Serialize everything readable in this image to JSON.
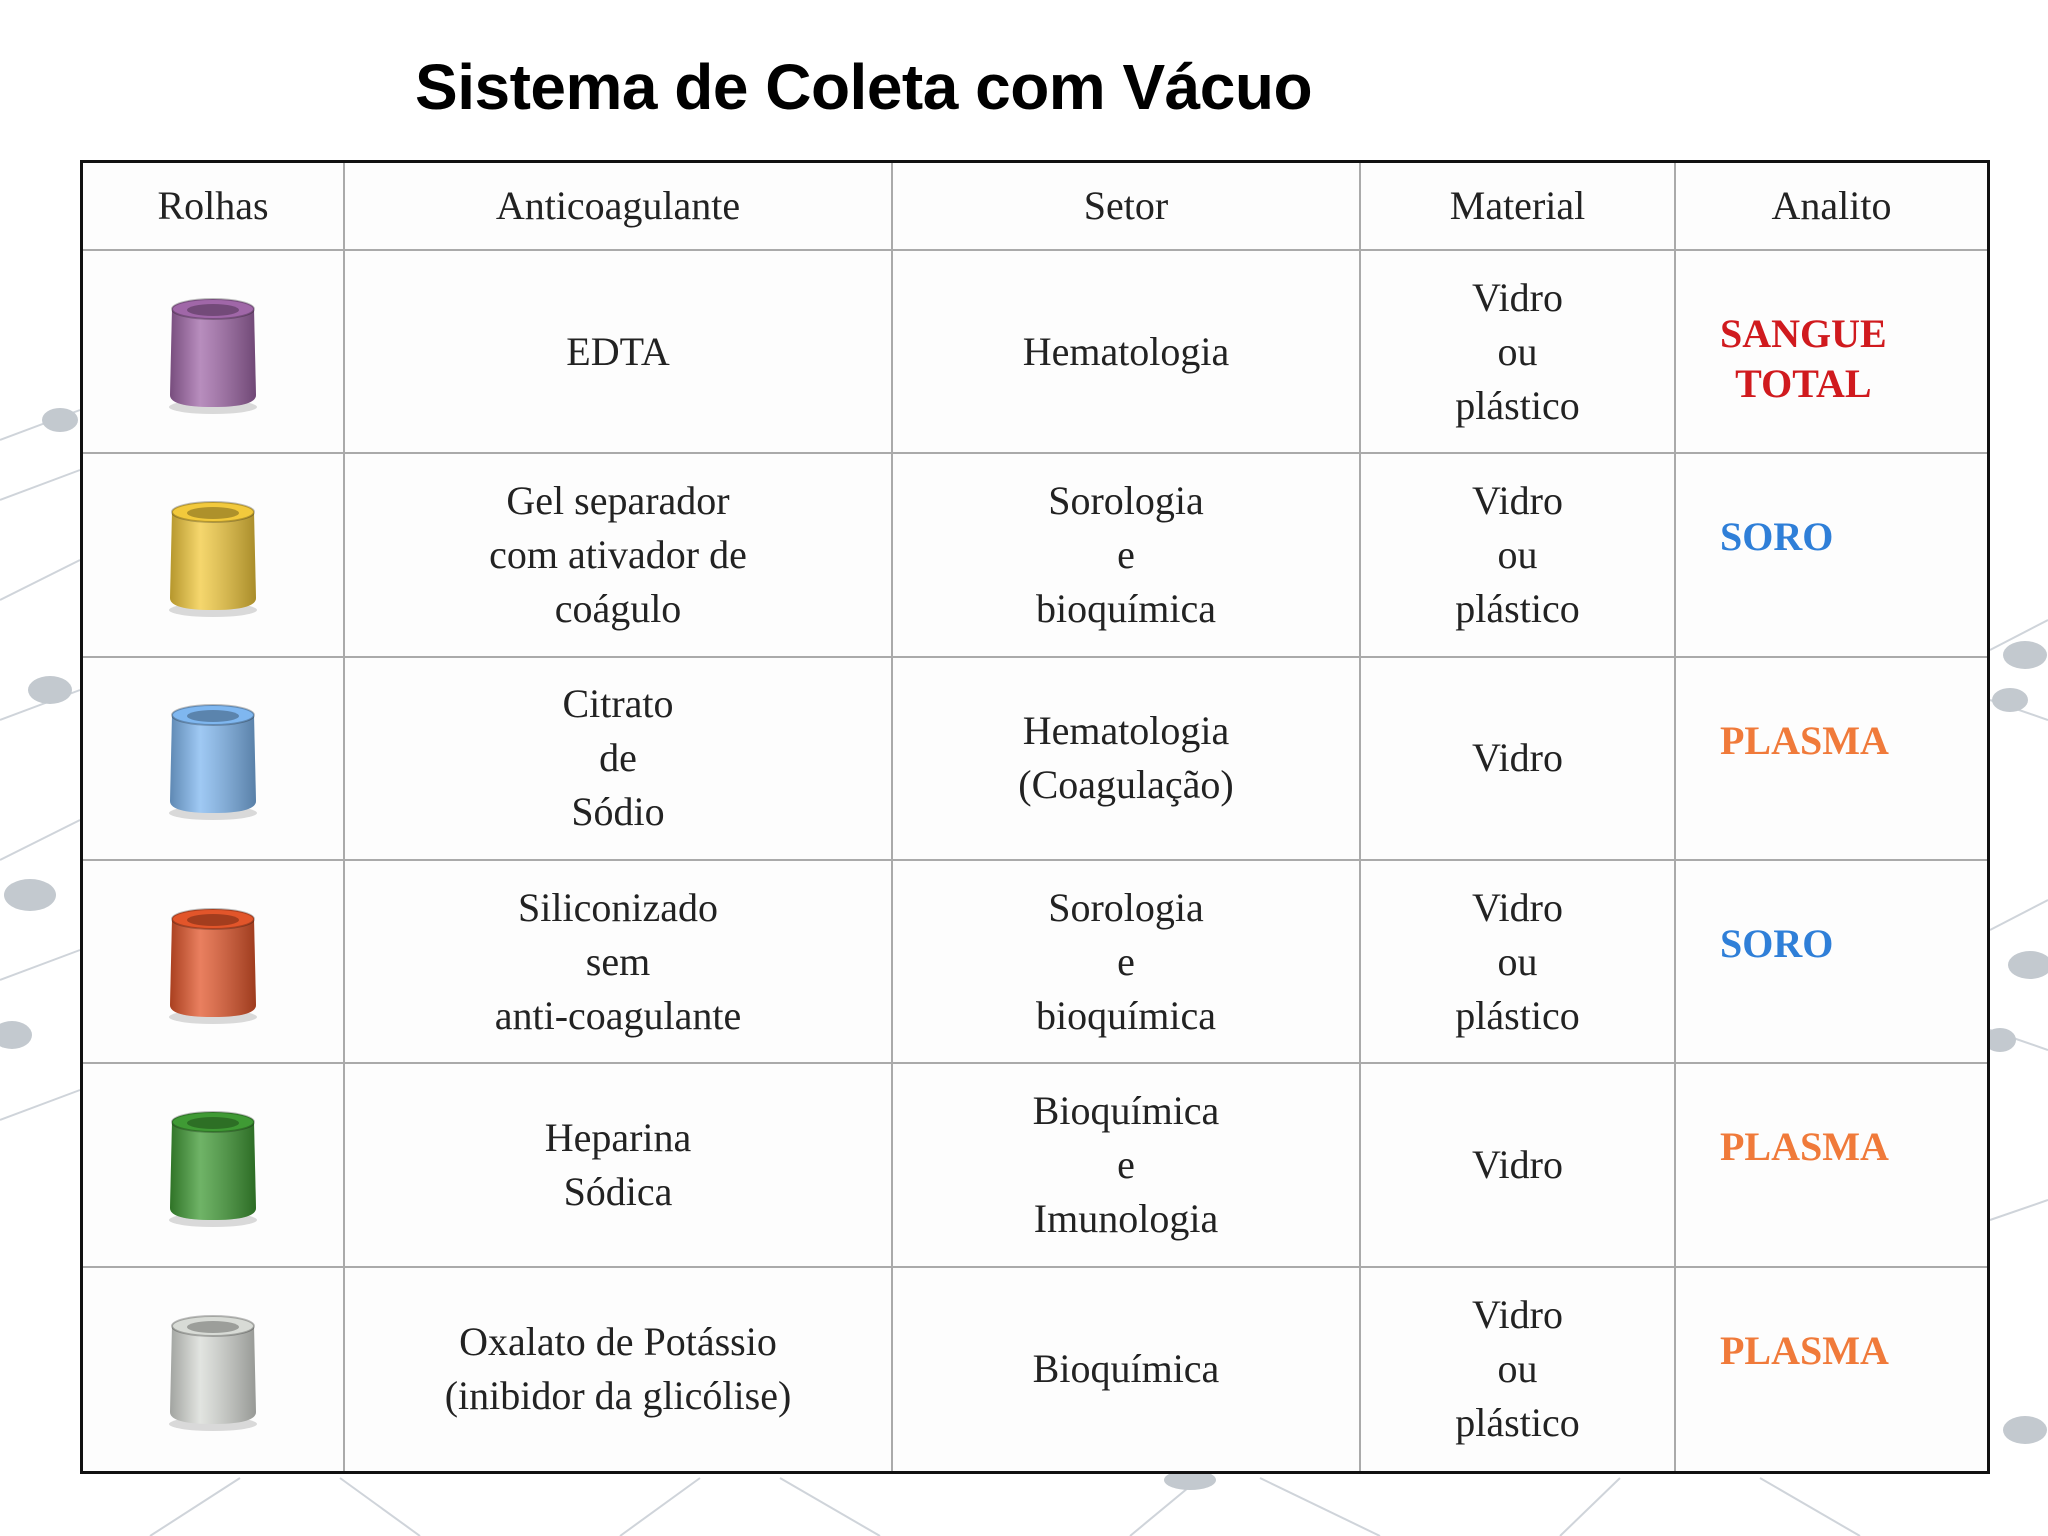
{
  "title": "Sistema de Coleta com Vácuo",
  "headers": [
    "Rolhas",
    "Anticoagulante",
    "Setor",
    "Material",
    "Analito"
  ],
  "rows": [
    {
      "cap_color": "#a067a8",
      "anticoagulante": "EDTA",
      "setor": "Hematologia",
      "material": "Vidro\nou\nplástico",
      "analito": "SANGUE\nTOTAL",
      "analito_color": "#d01a1e"
    },
    {
      "cap_color": "#f2c93c",
      "anticoagulante": "Gel separador\ncom ativador de\ncoágulo",
      "setor": "Sorologia\ne\nbioquímica",
      "material": "Vidro\nou\nplástico",
      "analito": "SORO",
      "analito_color": "#2f7fd8"
    },
    {
      "cap_color": "#7fb7f0",
      "anticoagulante": "Citrato\nde\nSódio",
      "setor": "Hematologia\n(Coagulação)",
      "material": "Vidro",
      "analito": "PLASMA",
      "analito_color": "#f07a3a"
    },
    {
      "cap_color": "#e2552a",
      "anticoagulante": "Siliconizado\nsem\nanti-coagulante",
      "setor": "Sorologia\ne\nbioquímica",
      "material": "Vidro\nou\nplástico",
      "analito": "SORO",
      "analito_color": "#2f7fd8"
    },
    {
      "cap_color": "#3f9a34",
      "anticoagulante": "Heparina\nSódica",
      "setor": "Bioquímica\ne\nImunologia",
      "material": "Vidro",
      "analito": "PLASMA",
      "analito_color": "#f07a3a"
    },
    {
      "cap_color": "#d8dbd6",
      "anticoagulante": "Oxalato de Potássio\n(inibidor da glicólise)",
      "setor": "Bioquímica",
      "material": "Vidro\nou\nplástico",
      "analito": "PLASMA",
      "analito_color": "#f07a3a"
    }
  ]
}
